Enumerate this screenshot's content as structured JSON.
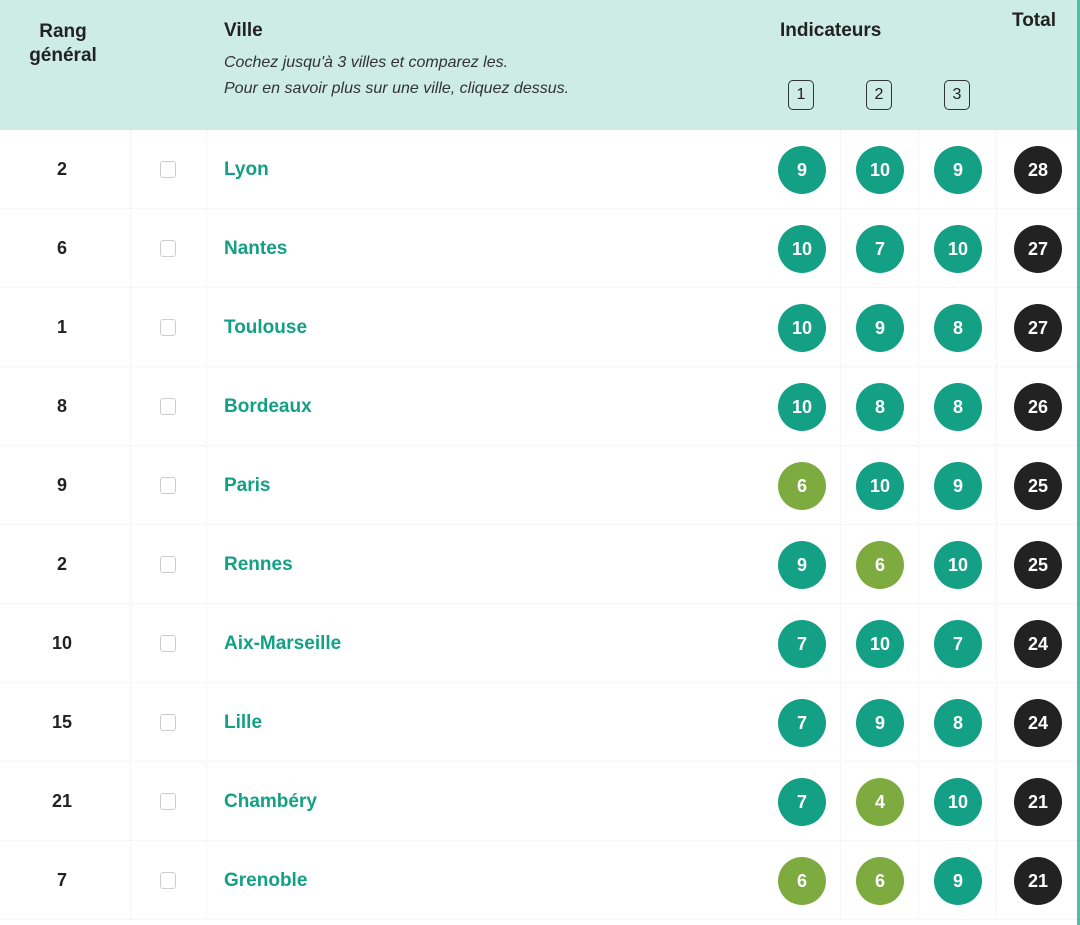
{
  "header": {
    "rank": "Rang général",
    "city": "Ville",
    "hint1": "Cochez jusqu'à 3 villes et comparez les.",
    "hint2": "Pour en savoir plus sur une ville, cliquez dessus.",
    "indicators": "Indicateurs",
    "indicator_numbers": [
      "1",
      "2",
      "3"
    ],
    "total": "Total"
  },
  "colors": {
    "high": "#13a085",
    "medium": "#7dab3f",
    "total": "#222222",
    "header_bg": "#cdece6"
  },
  "rows": [
    {
      "rank": "2",
      "city": "Lyon",
      "scores": [
        "9",
        "10",
        "9"
      ],
      "total": "28"
    },
    {
      "rank": "6",
      "city": "Nantes",
      "scores": [
        "10",
        "7",
        "10"
      ],
      "total": "27"
    },
    {
      "rank": "1",
      "city": "Toulouse",
      "scores": [
        "10",
        "9",
        "8"
      ],
      "total": "27"
    },
    {
      "rank": "8",
      "city": "Bordeaux",
      "scores": [
        "10",
        "8",
        "8"
      ],
      "total": "26"
    },
    {
      "rank": "9",
      "city": "Paris",
      "scores": [
        "6",
        "10",
        "9"
      ],
      "total": "25"
    },
    {
      "rank": "2",
      "city": "Rennes",
      "scores": [
        "9",
        "6",
        "10"
      ],
      "total": "25"
    },
    {
      "rank": "10",
      "city": "Aix-Marseille",
      "scores": [
        "7",
        "10",
        "7"
      ],
      "total": "24"
    },
    {
      "rank": "15",
      "city": "Lille",
      "scores": [
        "7",
        "9",
        "8"
      ],
      "total": "24"
    },
    {
      "rank": "21",
      "city": "Chambéry",
      "scores": [
        "7",
        "4",
        "10"
      ],
      "total": "21"
    },
    {
      "rank": "7",
      "city": "Grenoble",
      "scores": [
        "6",
        "6",
        "9"
      ],
      "total": "21"
    }
  ]
}
